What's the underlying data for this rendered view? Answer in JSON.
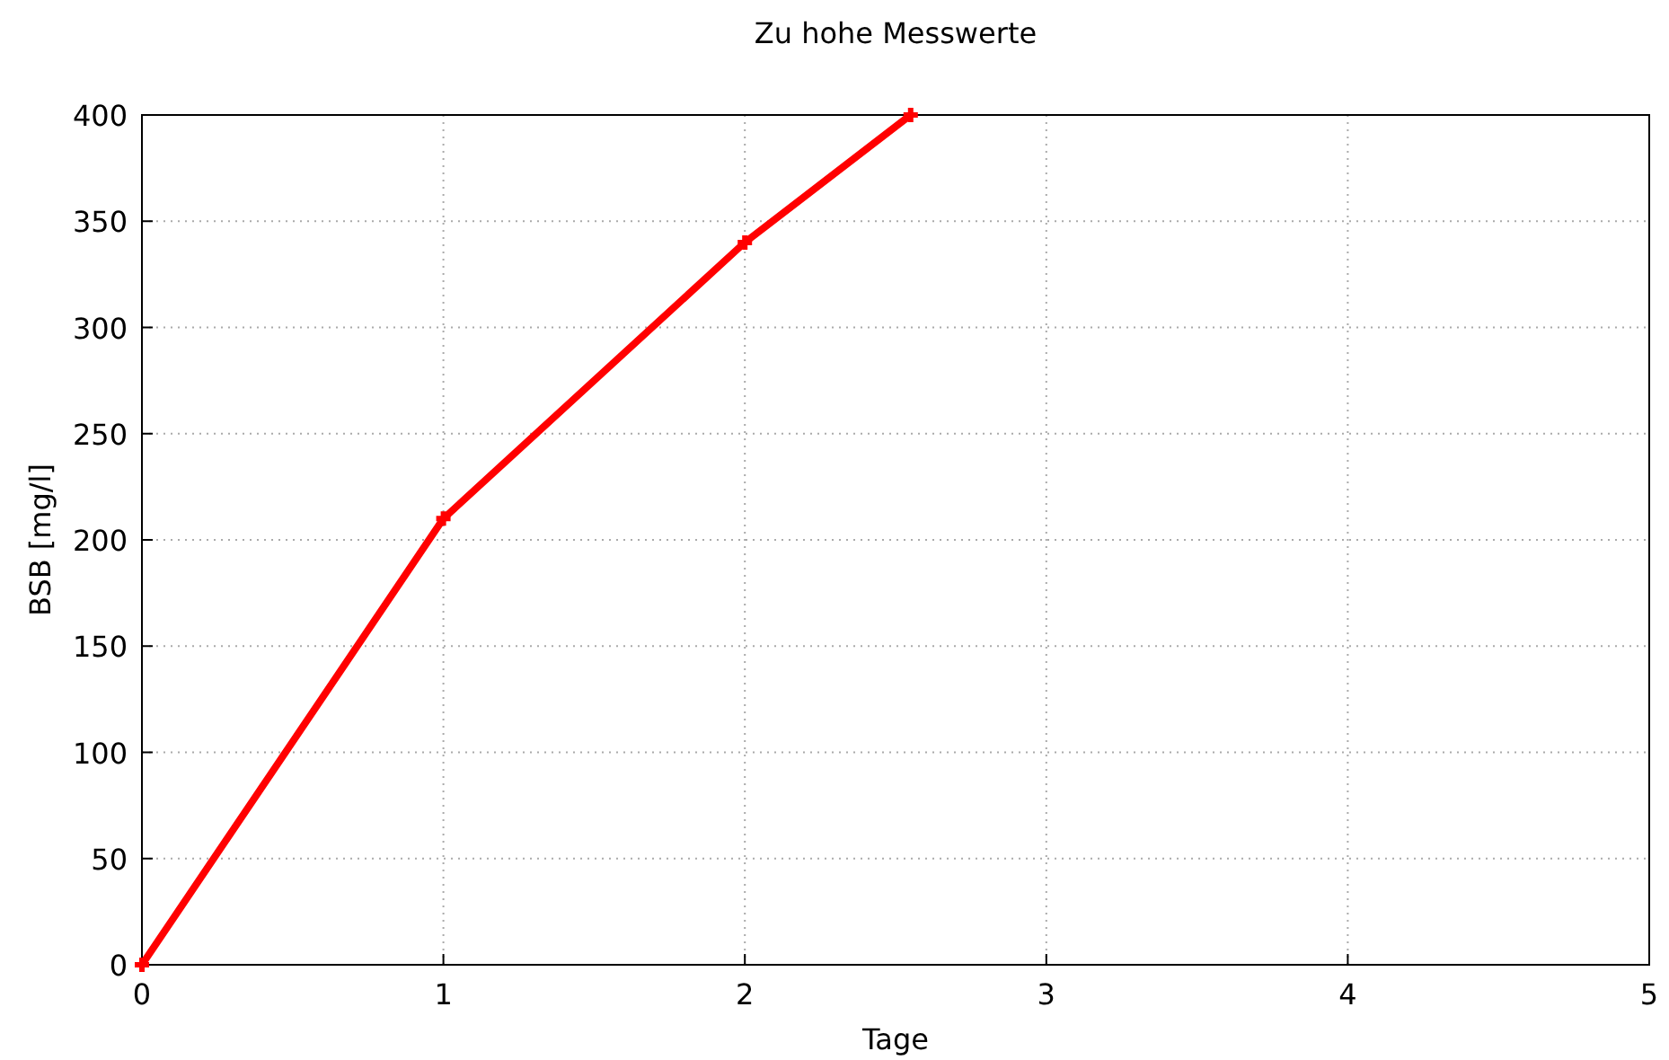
{
  "chart_data": {
    "type": "line",
    "title": "Zu hohe Messwerte",
    "xlabel": "Tage",
    "ylabel": "BSB  [mg/l]",
    "xlim": [
      0,
      5
    ],
    "xticks": [
      0,
      1,
      2,
      3,
      4,
      5
    ],
    "ylim": [
      0,
      400
    ],
    "yticks": [
      0,
      50,
      100,
      150,
      200,
      250,
      300,
      350,
      400
    ],
    "grid": true,
    "marker": "cross",
    "line_style": "solid",
    "series": [
      {
        "color": "#ff0000",
        "x": [
          0,
          1,
          2,
          2.55
        ],
        "values": [
          0,
          210,
          340,
          400
        ]
      }
    ]
  }
}
